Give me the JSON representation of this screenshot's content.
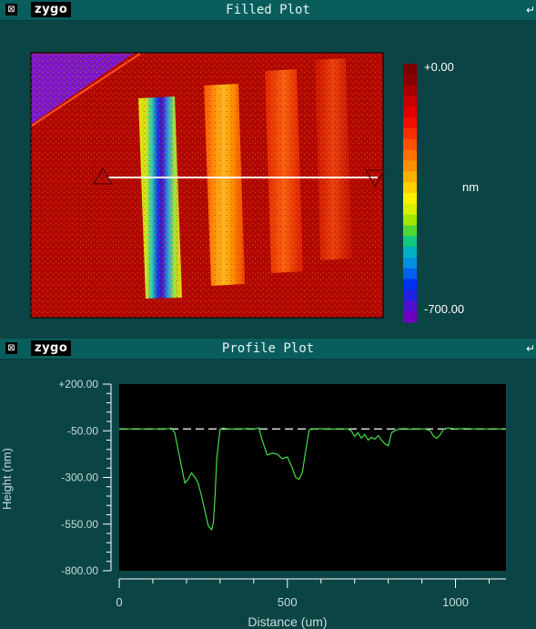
{
  "filled_plot": {
    "title": "Filled Plot",
    "logo": "zygo",
    "system_glyph": "⊠",
    "pin_glyph": "↵",
    "colorbar": {
      "max_label": "+0.00",
      "min_label": "-700.00",
      "unit": "nm",
      "colors": [
        "#7a0000",
        "#8a0000",
        "#a80000",
        "#c80000",
        "#e00000",
        "#f01000",
        "#f83000",
        "#fa5000",
        "#fb7000",
        "#fc9000",
        "#fdb000",
        "#fed000",
        "#fef000",
        "#d8f000",
        "#a0e800",
        "#50d830",
        "#10c880",
        "#00b0c0",
        "#0090e0",
        "#0060f0",
        "#0030f0",
        "#2020e0",
        "#5010d0",
        "#7000c0"
      ]
    }
  },
  "profile_plot": {
    "title": "Profile Plot",
    "logo": "zygo",
    "system_glyph": "⊠",
    "pin_glyph": "↵"
  },
  "chart_data": {
    "type": "line",
    "title": "Profile Plot",
    "xlabel": "Distance (um)",
    "ylabel": "Height (nm)",
    "xlim": [
      0,
      1150
    ],
    "ylim": [
      -800,
      200
    ],
    "xticks": [
      "0",
      "500",
      "1000"
    ],
    "xtick_values": [
      0,
      500,
      1000
    ],
    "yticks": [
      "+200.00",
      "-50.00",
      "-300.00",
      "-550.00",
      "-800.00"
    ],
    "ytick_values": [
      200,
      -50,
      -300,
      -550,
      -800
    ],
    "grid": false,
    "reference_line": {
      "y": -40,
      "style": "dashed",
      "color": "#d8d8d8"
    },
    "series": [
      {
        "color": "#44dd44",
        "x": [
          0,
          60,
          120,
          150,
          155,
          165,
          175,
          185,
          195,
          205,
          215,
          225,
          235,
          245,
          255,
          265,
          275,
          280,
          285,
          290,
          300,
          310,
          320,
          340,
          360,
          380,
          400,
          415,
          425,
          440,
          455,
          470,
          485,
          500,
          515,
          525,
          535,
          545,
          555,
          565,
          580,
          600,
          620,
          640,
          660,
          680,
          690,
          700,
          710,
          720,
          730,
          740,
          750,
          760,
          770,
          780,
          790,
          800,
          810,
          830,
          850,
          870,
          890,
          910,
          925,
          935,
          945,
          955,
          965,
          980,
          1000,
          1030,
          1060,
          1100,
          1150
        ],
        "y": [
          -40,
          -40,
          -40,
          -38,
          -35,
          -60,
          -150,
          -240,
          -330,
          -310,
          -275,
          -300,
          -330,
          -400,
          -480,
          -560,
          -580,
          -540,
          -400,
          -200,
          -40,
          -35,
          -40,
          -40,
          -40,
          -38,
          -40,
          -35,
          -100,
          -180,
          -170,
          -175,
          -200,
          -190,
          -250,
          -300,
          -310,
          -270,
          -150,
          -45,
          -40,
          -38,
          -42,
          -40,
          -40,
          -40,
          -50,
          -80,
          -60,
          -90,
          -70,
          -100,
          -85,
          -95,
          -75,
          -100,
          -120,
          -130,
          -60,
          -40,
          -38,
          -42,
          -40,
          -40,
          -50,
          -80,
          -90,
          -70,
          -40,
          -35,
          -40,
          -38,
          -40,
          -40,
          -40
        ]
      }
    ]
  }
}
